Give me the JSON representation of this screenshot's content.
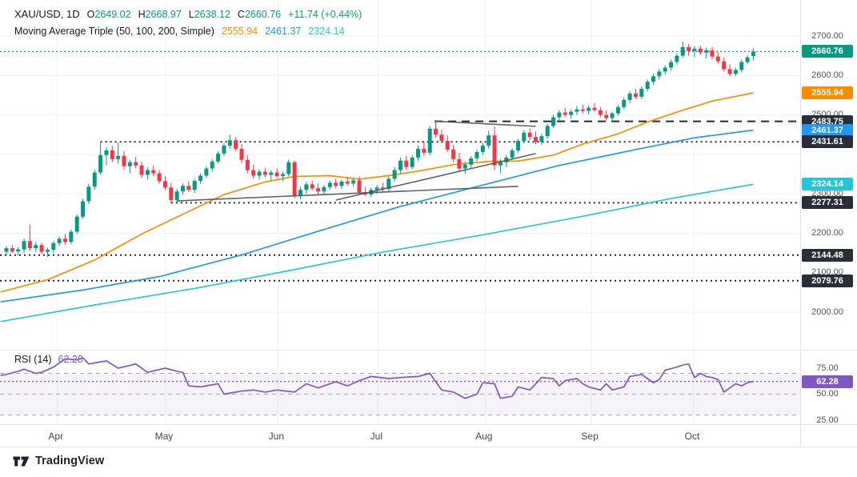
{
  "legend": {
    "symbol": "XAU/USD, 1D",
    "ohlc": [
      {
        "label": "O",
        "value": "2649.02"
      },
      {
        "label": "H",
        "value": "2668.97"
      },
      {
        "label": "L",
        "value": "2638.12"
      },
      {
        "label": "C",
        "value": "2660.76"
      }
    ],
    "change": "+11.74 (+0.44%)",
    "ma_title": "Moving Average Triple (50, 100, 200, Simple)",
    "ma_values": [
      "2555.94",
      "2461.37",
      "2324.14"
    ]
  },
  "rsi_legend": {
    "title": "RSI (14)",
    "value": "62.28"
  },
  "price_axis": {
    "ticks": [
      {
        "label": "2700.00",
        "value": 2700
      },
      {
        "label": "2600.00",
        "value": 2600
      },
      {
        "label": "2500.00",
        "value": 2500
      },
      {
        "label": "2300.00",
        "value": 2300
      },
      {
        "label": "2200.00",
        "value": 2200
      },
      {
        "label": "2100.00",
        "value": 2100
      },
      {
        "label": "2000.00",
        "value": 2000
      }
    ],
    "badges": [
      {
        "label": "2660.76",
        "value": 2660.76,
        "color": "#089981"
      },
      {
        "label": "2555.94",
        "value": 2555.94,
        "color": "#FB8C00"
      },
      {
        "label": "2483.75",
        "value": 2483.75,
        "color": "#2A2E39"
      },
      {
        "label": "2461.37",
        "value": 2461.37,
        "color": "#2196F3"
      },
      {
        "label": "2431.61",
        "value": 2431.61,
        "color": "#2A2E39"
      },
      {
        "label": "2324.14",
        "value": 2324.14,
        "color": "#26C6DA"
      },
      {
        "label": "2277.31",
        "value": 2277.31,
        "color": "#2A2E39"
      },
      {
        "label": "2144.48",
        "value": 2144.48,
        "color": "#2A2E39"
      },
      {
        "label": "2079.76",
        "value": 2079.76,
        "color": "#2A2E39"
      }
    ]
  },
  "rsi_axis": {
    "ticks": [
      {
        "label": "75.00",
        "value": 75
      },
      {
        "label": "50.00",
        "value": 50
      },
      {
        "label": "25.00",
        "value": 25
      }
    ],
    "badge": {
      "label": "62.28",
      "value": 62.28,
      "color": "#7E57C2"
    }
  },
  "time_axis": {
    "months": [
      {
        "label": "Apr",
        "i": 8.4
      },
      {
        "label": "May",
        "i": 26.8
      },
      {
        "label": "Jun",
        "i": 45.9
      },
      {
        "label": "Jul",
        "i": 62.9
      },
      {
        "label": "Aug",
        "i": 81.2
      },
      {
        "label": "Sep",
        "i": 99.2
      },
      {
        "label": "Oct",
        "i": 116.6
      }
    ]
  },
  "footer": {
    "brand": "TradingView"
  },
  "colors": {
    "up": "#089981",
    "down": "#F23645",
    "ma50": "#FB8C00",
    "ma100": "#2196F3",
    "ma200": "#26C6DA",
    "rsi": "#7E57C2",
    "level": "#22262F",
    "trend": "#50545E",
    "grid": "#EEF0F5",
    "separator": "#E0E3EB"
  },
  "chart_data": {
    "type": "candlestick",
    "title": "XAU/USD 1D with Moving Average Triple (50,100,200, Simple) and RSI(14)",
    "price_grid": [
      2000,
      2100,
      2200,
      2300,
      2400,
      2500,
      2600,
      2700
    ],
    "price_range_visible": [
      1905,
      2791
    ],
    "candles": [
      [
        2153,
        2168,
        2146,
        2162
      ],
      [
        2162,
        2170,
        2150,
        2154
      ],
      [
        2154,
        2165,
        2143,
        2159
      ],
      [
        2159,
        2186,
        2150,
        2180
      ],
      [
        2180,
        2222,
        2155,
        2162
      ],
      [
        2162,
        2178,
        2152,
        2170
      ],
      [
        2170,
        2176,
        2148,
        2153
      ],
      [
        2153,
        2164,
        2140,
        2158
      ],
      [
        2158,
        2180,
        2150,
        2175
      ],
      [
        2175,
        2192,
        2168,
        2186
      ],
      [
        2186,
        2198,
        2170,
        2178
      ],
      [
        2178,
        2210,
        2172,
        2204
      ],
      [
        2204,
        2248,
        2198,
        2242
      ],
      [
        2242,
        2288,
        2236,
        2281
      ],
      [
        2281,
        2326,
        2274,
        2318
      ],
      [
        2318,
        2362,
        2310,
        2354
      ],
      [
        2354,
        2431,
        2348,
        2398
      ],
      [
        2398,
        2418,
        2372,
        2410
      ],
      [
        2410,
        2422,
        2380,
        2388
      ],
      [
        2388,
        2430,
        2376,
        2396
      ],
      [
        2396,
        2408,
        2362,
        2370
      ],
      [
        2370,
        2386,
        2352,
        2380
      ],
      [
        2380,
        2394,
        2364,
        2372
      ],
      [
        2372,
        2380,
        2340,
        2348
      ],
      [
        2348,
        2368,
        2336,
        2360
      ],
      [
        2360,
        2372,
        2344,
        2352
      ],
      [
        2352,
        2360,
        2326,
        2332
      ],
      [
        2332,
        2344,
        2310,
        2316
      ],
      [
        2316,
        2328,
        2277,
        2284
      ],
      [
        2284,
        2312,
        2280,
        2306
      ],
      [
        2306,
        2326,
        2298,
        2320
      ],
      [
        2320,
        2332,
        2304,
        2310
      ],
      [
        2310,
        2338,
        2302,
        2333
      ],
      [
        2333,
        2352,
        2326,
        2346
      ],
      [
        2346,
        2370,
        2340,
        2364
      ],
      [
        2364,
        2388,
        2356,
        2382
      ],
      [
        2382,
        2408,
        2376,
        2402
      ],
      [
        2402,
        2428,
        2396,
        2422
      ],
      [
        2422,
        2450,
        2414,
        2436
      ],
      [
        2436,
        2444,
        2408,
        2414
      ],
      [
        2414,
        2426,
        2378,
        2386
      ],
      [
        2386,
        2398,
        2352,
        2360
      ],
      [
        2360,
        2374,
        2338,
        2346
      ],
      [
        2346,
        2362,
        2336,
        2356
      ],
      [
        2356,
        2366,
        2342,
        2348
      ],
      [
        2348,
        2360,
        2334,
        2354
      ],
      [
        2354,
        2364,
        2340,
        2345
      ],
      [
        2345,
        2356,
        2332,
        2350
      ],
      [
        2350,
        2387,
        2344,
        2380
      ],
      [
        2380,
        2384,
        2288,
        2294
      ],
      [
        2294,
        2318,
        2286,
        2310
      ],
      [
        2310,
        2330,
        2300,
        2324
      ],
      [
        2324,
        2334,
        2308,
        2314
      ],
      [
        2314,
        2326,
        2298,
        2306
      ],
      [
        2306,
        2322,
        2296,
        2317
      ],
      [
        2317,
        2334,
        2310,
        2328
      ],
      [
        2328,
        2338,
        2314,
        2320
      ],
      [
        2320,
        2336,
        2312,
        2331
      ],
      [
        2331,
        2342,
        2320,
        2326
      ],
      [
        2326,
        2340,
        2318,
        2334
      ],
      [
        2334,
        2344,
        2298,
        2304
      ],
      [
        2304,
        2318,
        2294,
        2298
      ],
      [
        2298,
        2316,
        2292,
        2310
      ],
      [
        2310,
        2322,
        2300,
        2316
      ],
      [
        2316,
        2328,
        2306,
        2312
      ],
      [
        2312,
        2344,
        2306,
        2338
      ],
      [
        2338,
        2368,
        2330,
        2360
      ],
      [
        2360,
        2392,
        2352,
        2384
      ],
      [
        2384,
        2396,
        2360,
        2368
      ],
      [
        2368,
        2398,
        2362,
        2392
      ],
      [
        2392,
        2422,
        2384,
        2414
      ],
      [
        2414,
        2432,
        2396,
        2404
      ],
      [
        2404,
        2472,
        2398,
        2465
      ],
      [
        2465,
        2484,
        2442,
        2450
      ],
      [
        2450,
        2462,
        2428,
        2434
      ],
      [
        2434,
        2448,
        2406,
        2412
      ],
      [
        2412,
        2424,
        2380,
        2388
      ],
      [
        2388,
        2404,
        2356,
        2364
      ],
      [
        2364,
        2382,
        2350,
        2374
      ],
      [
        2374,
        2396,
        2366,
        2390
      ],
      [
        2390,
        2412,
        2382,
        2406
      ],
      [
        2406,
        2430,
        2398,
        2422
      ],
      [
        2422,
        2460,
        2414,
        2448
      ],
      [
        2448,
        2470,
        2360,
        2372
      ],
      [
        2372,
        2388,
        2352,
        2380
      ],
      [
        2380,
        2398,
        2368,
        2392
      ],
      [
        2392,
        2416,
        2386,
        2410
      ],
      [
        2410,
        2440,
        2404,
        2434
      ],
      [
        2434,
        2462,
        2428,
        2455
      ],
      [
        2455,
        2466,
        2436,
        2444
      ],
      [
        2444,
        2458,
        2426,
        2432
      ],
      [
        2432,
        2452,
        2424,
        2446
      ],
      [
        2446,
        2478,
        2440,
        2472
      ],
      [
        2472,
        2500,
        2466,
        2494
      ],
      [
        2494,
        2512,
        2486,
        2506
      ],
      [
        2506,
        2518,
        2494,
        2500
      ],
      [
        2500,
        2514,
        2490,
        2508
      ],
      [
        2508,
        2522,
        2500,
        2514
      ],
      [
        2514,
        2526,
        2504,
        2510
      ],
      [
        2510,
        2524,
        2502,
        2518
      ],
      [
        2518,
        2530,
        2508,
        2512
      ],
      [
        2512,
        2520,
        2494,
        2500
      ],
      [
        2500,
        2512,
        2486,
        2492
      ],
      [
        2492,
        2508,
        2484,
        2504
      ],
      [
        2504,
        2526,
        2498,
        2520
      ],
      [
        2520,
        2544,
        2514,
        2538
      ],
      [
        2538,
        2560,
        2530,
        2554
      ],
      [
        2554,
        2566,
        2540,
        2546
      ],
      [
        2546,
        2572,
        2540,
        2566
      ],
      [
        2566,
        2590,
        2560,
        2584
      ],
      [
        2584,
        2604,
        2576,
        2598
      ],
      [
        2598,
        2616,
        2590,
        2610
      ],
      [
        2610,
        2626,
        2602,
        2620
      ],
      [
        2620,
        2640,
        2612,
        2634
      ],
      [
        2634,
        2656,
        2628,
        2650
      ],
      [
        2650,
        2686,
        2644,
        2672
      ],
      [
        2672,
        2680,
        2650,
        2662
      ],
      [
        2662,
        2674,
        2646,
        2668
      ],
      [
        2668,
        2676,
        2652,
        2658
      ],
      [
        2658,
        2670,
        2644,
        2664
      ],
      [
        2664,
        2672,
        2640,
        2648
      ],
      [
        2648,
        2660,
        2630,
        2636
      ],
      [
        2636,
        2646,
        2610,
        2616
      ],
      [
        2616,
        2628,
        2598,
        2604
      ],
      [
        2604,
        2620,
        2598,
        2614
      ],
      [
        2614,
        2640,
        2608,
        2634
      ],
      [
        2634,
        2652,
        2628,
        2646
      ],
      [
        2649.02,
        2668.97,
        2638.12,
        2660.76
      ]
    ],
    "ma50": [
      [
        -1,
        2051
      ],
      [
        7,
        2082
      ],
      [
        15,
        2132
      ],
      [
        23,
        2198
      ],
      [
        30,
        2248
      ],
      [
        37,
        2298
      ],
      [
        44,
        2330
      ],
      [
        49,
        2344
      ],
      [
        55,
        2346
      ],
      [
        60,
        2337
      ],
      [
        66,
        2348
      ],
      [
        71,
        2360
      ],
      [
        76,
        2374
      ],
      [
        82,
        2382
      ],
      [
        87,
        2383
      ],
      [
        93,
        2398
      ],
      [
        98,
        2426
      ],
      [
        104,
        2452
      ],
      [
        109,
        2482
      ],
      [
        115,
        2512
      ],
      [
        120,
        2535
      ],
      [
        127,
        2555.94
      ]
    ],
    "ma100": [
      [
        -1,
        2026
      ],
      [
        13,
        2056
      ],
      [
        26,
        2090
      ],
      [
        40,
        2145
      ],
      [
        53,
        2205
      ],
      [
        67,
        2268
      ],
      [
        81,
        2322
      ],
      [
        94,
        2372
      ],
      [
        108,
        2415
      ],
      [
        117,
        2442
      ],
      [
        127,
        2461.37
      ]
    ],
    "ma200": [
      [
        -1,
        1976
      ],
      [
        15,
        2018
      ],
      [
        32,
        2060
      ],
      [
        48,
        2105
      ],
      [
        64,
        2152
      ],
      [
        81,
        2196
      ],
      [
        97,
        2240
      ],
      [
        113,
        2288
      ],
      [
        127,
        2324.14
      ]
    ],
    "levels": [
      {
        "price": 2660.76,
        "from": -1.1,
        "style": "densedot",
        "color": "#089981",
        "width": 1.2
      },
      {
        "price": 2483.75,
        "from": 72.8,
        "style": "dashed",
        "color": "#22262F",
        "width": 2
      },
      {
        "price": 2431.61,
        "from": 16,
        "style": "dotted",
        "color": "#22262F",
        "width": 2
      },
      {
        "price": 2277.31,
        "from": 28,
        "style": "dotted",
        "color": "#22262F",
        "width": 2
      },
      {
        "price": 2144.48,
        "from": -1.1,
        "style": "dotted",
        "color": "#22262F",
        "width": 2
      },
      {
        "price": 2079.76,
        "from": -1.1,
        "style": "dotted",
        "color": "#22262F",
        "width": 2
      }
    ],
    "trendlines": [
      {
        "points": [
          [
            29,
            2282
          ],
          [
            87,
            2319
          ]
        ]
      },
      {
        "points": [
          [
            56,
            2284
          ],
          [
            90,
            2402
          ]
        ]
      },
      {
        "points": [
          [
            72.8,
            2484
          ],
          [
            90,
            2471
          ]
        ]
      }
    ],
    "rsi": {
      "period": 14,
      "value": 62.28,
      "bands": [
        70,
        50,
        30
      ],
      "band_fill_range": [
        30,
        70
      ],
      "points": [
        [
          -1,
          68
        ],
        [
          0,
          69
        ],
        [
          2,
          72
        ],
        [
          3,
          74
        ],
        [
          5,
          70
        ],
        [
          6,
          71
        ],
        [
          8,
          76
        ],
        [
          10,
          84
        ],
        [
          12,
          83
        ],
        [
          13,
          85
        ],
        [
          14,
          79
        ],
        [
          17,
          82
        ],
        [
          19,
          75
        ],
        [
          22,
          79
        ],
        [
          24,
          71
        ],
        [
          27,
          75
        ],
        [
          29,
          72
        ],
        [
          30,
          71
        ],
        [
          31,
          58
        ],
        [
          33,
          57
        ],
        [
          36,
          60
        ],
        [
          37,
          50
        ],
        [
          40,
          53
        ],
        [
          42,
          54
        ],
        [
          44,
          52
        ],
        [
          46,
          54
        ],
        [
          49,
          52
        ],
        [
          51,
          60
        ],
        [
          53,
          56
        ],
        [
          56,
          62
        ],
        [
          58,
          58
        ],
        [
          60,
          63
        ],
        [
          62,
          67
        ],
        [
          65,
          65
        ],
        [
          67,
          66
        ],
        [
          70,
          67
        ],
        [
          72,
          70
        ],
        [
          74,
          54
        ],
        [
          76,
          52
        ],
        [
          78,
          46
        ],
        [
          80,
          50
        ],
        [
          81,
          61
        ],
        [
          83,
          60
        ],
        [
          84,
          46
        ],
        [
          86,
          48
        ],
        [
          87,
          57
        ],
        [
          89,
          54
        ],
        [
          90,
          60
        ],
        [
          91,
          66
        ],
        [
          93,
          65
        ],
        [
          94,
          58
        ],
        [
          95,
          63
        ],
        [
          97,
          65
        ],
        [
          98,
          60
        ],
        [
          99,
          57
        ],
        [
          101,
          54
        ],
        [
          102,
          60
        ],
        [
          103,
          54
        ],
        [
          105,
          57
        ],
        [
          106,
          67
        ],
        [
          108,
          69
        ],
        [
          109,
          65
        ],
        [
          110,
          61
        ],
        [
          111,
          64
        ],
        [
          112,
          73
        ],
        [
          114,
          76
        ],
        [
          115,
          78
        ],
        [
          116,
          79
        ],
        [
          117,
          66
        ],
        [
          118,
          70
        ],
        [
          119,
          67
        ],
        [
          120,
          66
        ],
        [
          121,
          64
        ],
        [
          122,
          52
        ],
        [
          123,
          56
        ],
        [
          124,
          60
        ],
        [
          125,
          58
        ],
        [
          126,
          61
        ],
        [
          127,
          62.28
        ]
      ]
    }
  }
}
